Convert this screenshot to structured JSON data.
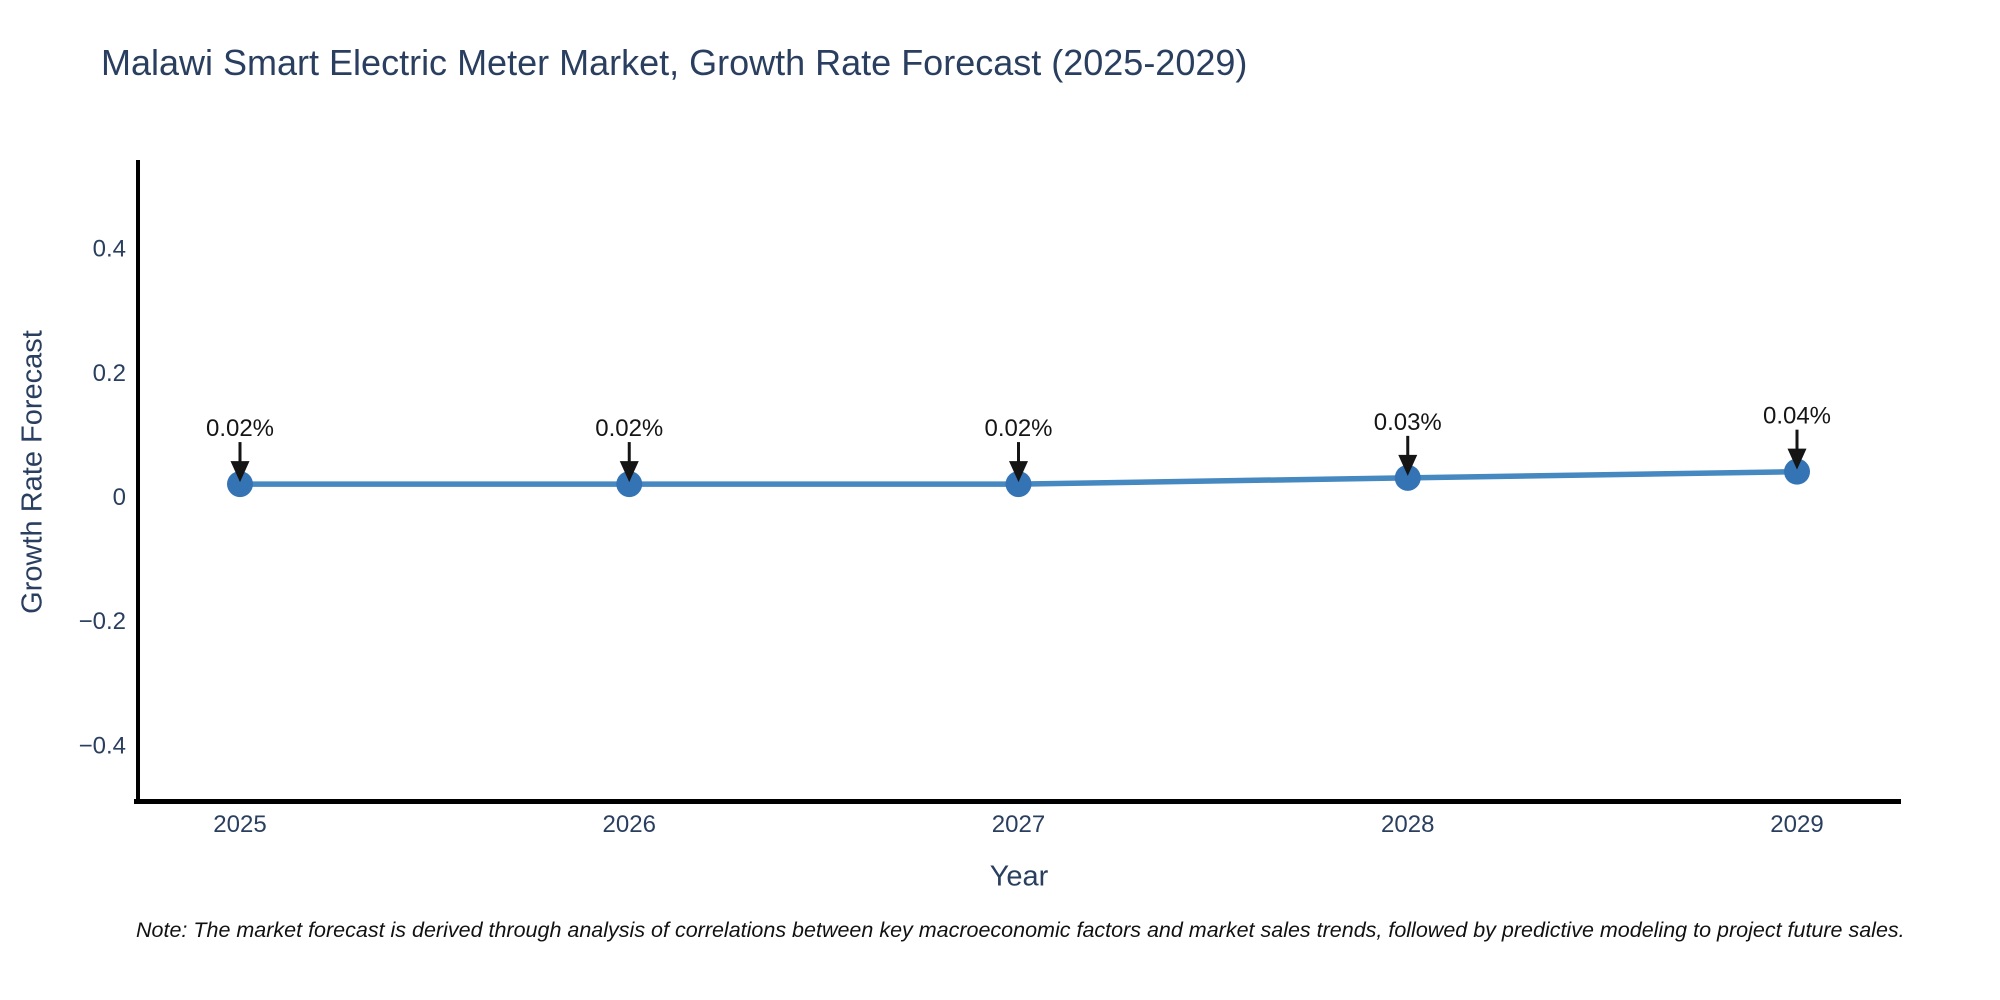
{
  "title": "Malawi Smart Electric Meter Market, Growth Rate Forecast (2025-2029)",
  "note": "Note: The market forecast is derived through analysis of correlations between key macroeconomic factors and market sales trends, followed by predictive modeling to project future sales.",
  "chart_data": {
    "type": "line",
    "title": "Malawi Smart Electric Meter Market, Growth Rate Forecast (2025-2029)",
    "xlabel": "Year",
    "ylabel": "Growth Rate Forecast",
    "x": [
      2025,
      2026,
      2027,
      2028,
      2029
    ],
    "x_tick_labels": [
      "2025",
      "2026",
      "2027",
      "2028",
      "2029"
    ],
    "series": [
      {
        "name": "Growth Rate Forecast",
        "values": [
          0.02,
          0.02,
          0.02,
          0.03,
          0.04
        ]
      }
    ],
    "point_labels": [
      "0.02%",
      "0.02%",
      "0.02%",
      "0.03%",
      "0.04%"
    ],
    "y_ticks": [
      0.4,
      0.2,
      0,
      -0.2,
      -0.4
    ],
    "y_tick_labels": [
      "0.4",
      "0.2",
      "0",
      "−0.2",
      "−0.4"
    ],
    "ylim": [
      -0.49,
      0.54
    ],
    "grid": false,
    "legend": "none",
    "line_color": "#4688c0",
    "marker_color": "#3474b4",
    "axis_line_color": "#000000",
    "annotation_color": "#151515",
    "text_color": "#2a3f5f"
  }
}
